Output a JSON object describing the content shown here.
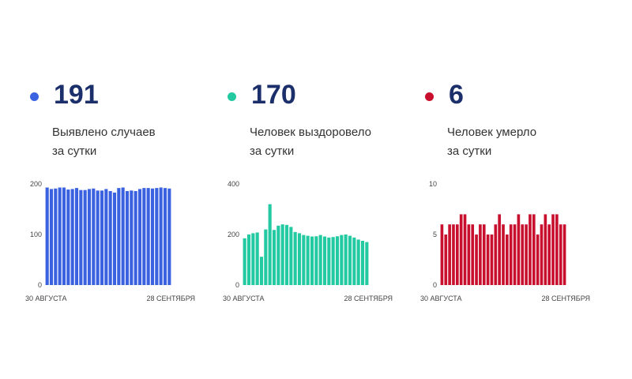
{
  "panels": [
    {
      "value": "191",
      "line1": "Выявлено случаев",
      "line2": "за сутки",
      "color": "#3a62e0",
      "dot_icon": "bullet-dot-icon"
    },
    {
      "value": "170",
      "line1": "Человек выздоровело",
      "line2": "за сутки",
      "color": "#22c9a1",
      "dot_icon": "bullet-dot-icon"
    },
    {
      "value": "6",
      "line1": "Человек умерло",
      "line2": "за сутки",
      "color": "#c8102e",
      "dot_icon": "bullet-dot-icon"
    }
  ],
  "chart_data": [
    {
      "type": "bar",
      "x_start_label": "30 АВГУСТА",
      "x_end_label": "28 СЕНТЯБРЯ",
      "yticks": [
        0,
        100,
        200
      ],
      "ylim": [
        0,
        200
      ],
      "color": "#3a62e0",
      "values": [
        193,
        190,
        191,
        193,
        193,
        189,
        190,
        192,
        188,
        188,
        190,
        191,
        187,
        187,
        190,
        186,
        183,
        192,
        193,
        186,
        187,
        186,
        190,
        192,
        192,
        191,
        192,
        193,
        192,
        191
      ]
    },
    {
      "type": "bar",
      "x_start_label": "30 АВГУСТА",
      "x_end_label": "28 СЕНТЯБРЯ",
      "yticks": [
        0,
        200,
        400
      ],
      "ylim": [
        0,
        400
      ],
      "color": "#22c9a1",
      "values": [
        185,
        200,
        205,
        208,
        112,
        220,
        320,
        218,
        235,
        240,
        238,
        230,
        210,
        205,
        198,
        195,
        192,
        193,
        198,
        192,
        188,
        190,
        193,
        198,
        200,
        195,
        188,
        180,
        175,
        170
      ]
    },
    {
      "type": "bar",
      "x_start_label": "30 АВГУСТА",
      "x_end_label": "28 СЕНТЯБРЯ",
      "yticks": [
        0,
        5,
        10
      ],
      "ylim": [
        0,
        10
      ],
      "color": "#c8102e",
      "values": [
        6,
        5,
        6,
        6,
        6,
        7,
        7,
        6,
        6,
        5,
        6,
        6,
        5,
        5,
        6,
        7,
        6,
        5,
        6,
        6,
        7,
        6,
        6,
        7,
        7,
        5,
        6,
        7,
        6,
        7,
        7,
        6,
        6
      ]
    }
  ]
}
